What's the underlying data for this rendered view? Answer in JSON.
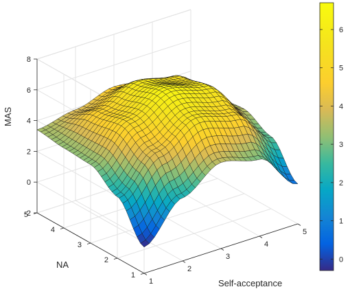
{
  "chart_data": {
    "type": "surface3d",
    "title": "",
    "xlabel": "Self-acceptance",
    "ylabel": "NA",
    "zlabel": "MAS",
    "xlim": [
      1,
      5
    ],
    "ylim": [
      1,
      5
    ],
    "zlim": [
      -2,
      8
    ],
    "xticks": [
      1,
      2,
      3,
      4,
      5
    ],
    "yticks": [
      1,
      2,
      3,
      4,
      5
    ],
    "zticks": [
      -2,
      0,
      2,
      4,
      6,
      8
    ],
    "grid": true,
    "colormap": "parula",
    "colorbar": {
      "range": [
        -0.3,
        6.7
      ],
      "ticks": [
        0,
        1,
        2,
        3,
        4,
        5,
        6
      ],
      "placement": "right"
    },
    "surface_samples": {
      "x": [
        1,
        2,
        3,
        4,
        5
      ],
      "y": [
        1,
        2,
        3,
        4,
        5
      ],
      "z": [
        [
          -0.3,
          2.1,
          3.6,
          3.0,
          0.6
        ],
        [
          2.0,
          4.2,
          5.6,
          5.0,
          2.7
        ],
        [
          3.1,
          5.2,
          6.4,
          5.8,
          3.5
        ],
        [
          3.2,
          4.8,
          5.9,
          5.4,
          3.3
        ],
        [
          3.4,
          3.9,
          4.6,
          4.3,
          2.6
        ]
      ]
    }
  }
}
